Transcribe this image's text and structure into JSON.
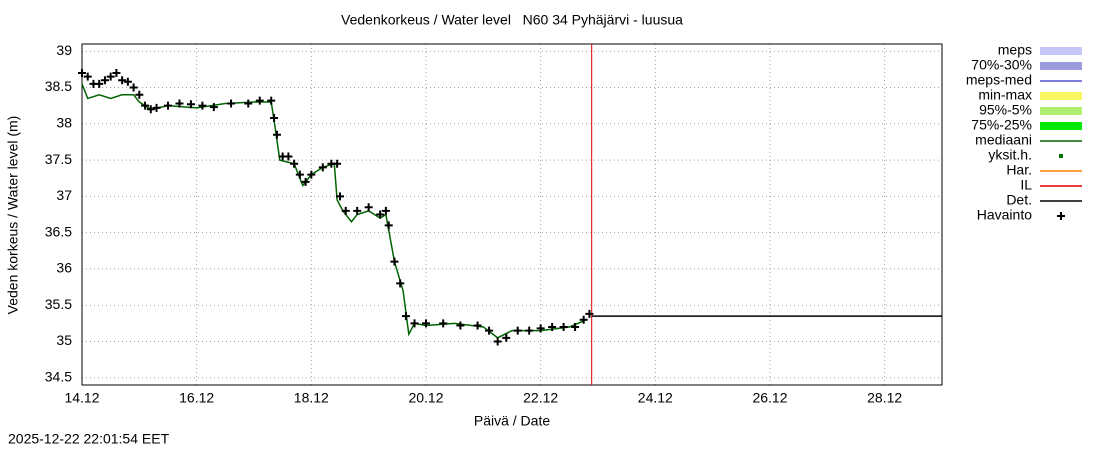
{
  "chart_data": {
    "type": "line",
    "title": "Vedenkorkeus / Water level   N60 34 Pyhäjärvi - luusua",
    "x_label": "Päivä / Date",
    "y_label": "Veden korkeus / Water level (m)",
    "timestamp": "2025-12-22 22:01:54 EET",
    "xlim": [
      14,
      29
    ],
    "ylim": [
      34.4,
      39.1
    ],
    "xticks": [
      {
        "value": 14,
        "label": "14.12"
      },
      {
        "value": 16,
        "label": "16.12"
      },
      {
        "value": 18,
        "label": "18.12"
      },
      {
        "value": 20,
        "label": "20.12"
      },
      {
        "value": 22,
        "label": "22.12"
      },
      {
        "value": 24,
        "label": "24.12"
      },
      {
        "value": 26,
        "label": "26.12"
      },
      {
        "value": 28,
        "label": "28.12"
      }
    ],
    "yticks": [
      34.5,
      35,
      35.5,
      36,
      36.5,
      37,
      37.5,
      38,
      38.5,
      39
    ],
    "grid": true,
    "legend": "right",
    "series": [
      {
        "name": "meps",
        "color": "#c8c8f8",
        "style": "band"
      },
      {
        "name": "70%-30%",
        "color": "#9c9cdc",
        "style": "band"
      },
      {
        "name": "meps-med",
        "color": "#5050d0",
        "style": "line"
      },
      {
        "name": "min-max",
        "color": "#f8f860",
        "style": "band"
      },
      {
        "name": "95%-5%",
        "color": "#b0f070",
        "style": "band"
      },
      {
        "name": "75%-25%",
        "color": "#00e800",
        "style": "band"
      },
      {
        "name": "mediaani",
        "color": "#006400",
        "style": "line",
        "x": [
          14,
          14.1,
          14.3,
          14.5,
          14.7,
          14.9,
          15.0,
          15.2,
          15.5,
          16.0,
          16.5,
          17.0,
          17.3,
          17.35,
          17.45,
          17.7,
          17.85,
          18.0,
          18.2,
          18.4,
          18.45,
          18.55,
          18.7,
          18.8,
          19.0,
          19.2,
          19.3,
          19.45,
          19.6,
          19.7,
          19.8,
          20.0,
          20.5,
          21.0,
          21.25,
          21.5,
          22.0,
          22.5,
          22.8
        ],
        "values": [
          38.55,
          38.35,
          38.4,
          38.35,
          38.4,
          38.4,
          38.3,
          38.2,
          38.25,
          38.22,
          38.28,
          38.3,
          38.3,
          38.05,
          37.5,
          37.45,
          37.15,
          37.3,
          37.4,
          37.45,
          36.95,
          36.8,
          36.65,
          36.75,
          36.8,
          36.7,
          36.75,
          36.1,
          35.7,
          35.1,
          35.25,
          35.22,
          35.25,
          35.2,
          35.05,
          35.15,
          35.15,
          35.2,
          35.3
        ]
      },
      {
        "name": "yksit.h.",
        "color": "#007000",
        "style": "dots"
      },
      {
        "name": "Har.",
        "color": "#ff8000",
        "style": "line"
      },
      {
        "name": "IL",
        "color": "#e00000",
        "style": "vline",
        "x": [
          22.89
        ]
      },
      {
        "name": "Det.",
        "color": "#000000",
        "style": "line",
        "x": [
          22.89,
          29
        ],
        "values": [
          35.35,
          35.35
        ]
      },
      {
        "name": "Havainto",
        "color": "#000000",
        "style": "plus",
        "x": [
          14.0,
          14.1,
          14.2,
          14.3,
          14.4,
          14.5,
          14.6,
          14.7,
          14.8,
          14.9,
          15.0,
          15.1,
          15.2,
          15.3,
          15.5,
          15.7,
          15.9,
          16.1,
          16.3,
          16.6,
          16.9,
          17.1,
          17.3,
          17.35,
          17.4,
          17.5,
          17.6,
          17.7,
          17.8,
          17.9,
          18.0,
          18.2,
          18.35,
          18.45,
          18.5,
          18.6,
          18.8,
          19.0,
          19.2,
          19.3,
          19.35,
          19.45,
          19.55,
          19.65,
          19.8,
          20.0,
          20.3,
          20.6,
          20.9,
          21.1,
          21.25,
          21.4,
          21.6,
          21.8,
          22.0,
          22.2,
          22.4,
          22.6,
          22.75,
          22.85
        ],
        "values": [
          38.7,
          38.65,
          38.55,
          38.55,
          38.6,
          38.65,
          38.7,
          38.6,
          38.58,
          38.5,
          38.4,
          38.25,
          38.2,
          38.22,
          38.25,
          38.28,
          38.27,
          38.25,
          38.23,
          38.28,
          38.28,
          38.32,
          38.32,
          38.08,
          37.85,
          37.55,
          37.55,
          37.45,
          37.3,
          37.2,
          37.3,
          37.4,
          37.45,
          37.45,
          37.0,
          36.8,
          36.8,
          36.85,
          36.75,
          36.8,
          36.6,
          36.1,
          35.8,
          35.35,
          35.25,
          35.25,
          35.25,
          35.22,
          35.22,
          35.15,
          35.0,
          35.05,
          35.15,
          35.15,
          35.18,
          35.2,
          35.2,
          35.2,
          35.3,
          35.38
        ]
      }
    ]
  }
}
